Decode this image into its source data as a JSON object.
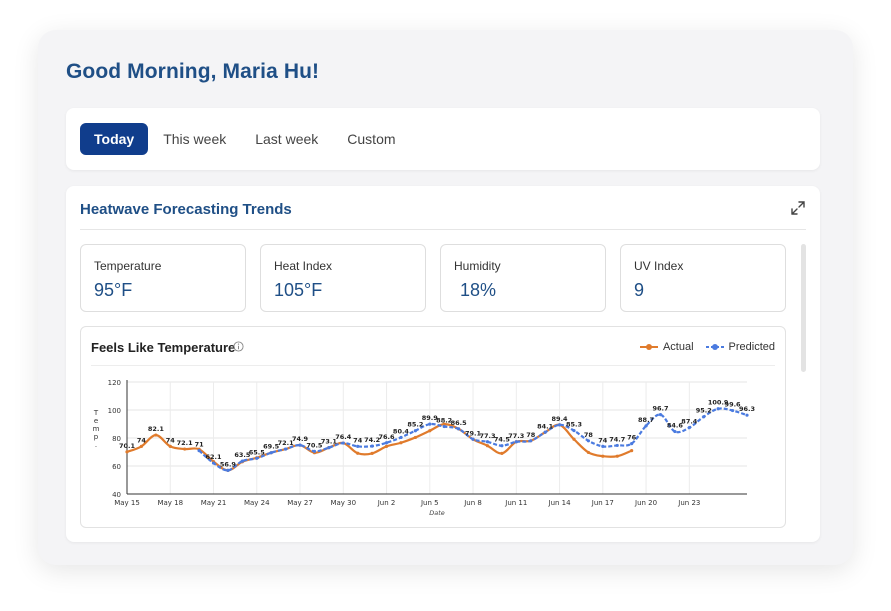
{
  "greeting": "Good Morning, Maria Hu!",
  "tabs": [
    {
      "label": "Today",
      "active": true
    },
    {
      "label": "This week",
      "active": false
    },
    {
      "label": "Last week",
      "active": false
    },
    {
      "label": "Custom",
      "active": false
    }
  ],
  "panel": {
    "title": "Heatwave Forecasting Trends",
    "expand_icon": "expand-icon"
  },
  "kpis": [
    {
      "label": "Temperature",
      "value": "95°F"
    },
    {
      "label": "Heat Index",
      "value": "105°F"
    },
    {
      "label": "Humidity",
      "value": "18%"
    },
    {
      "label": "UV Index",
      "value": "9"
    }
  ],
  "colors": {
    "accent": "#103d8c",
    "title": "#1f4f86",
    "actual": "#e07b2c",
    "predicted": "#4b7be0"
  },
  "chart_data": {
    "type": "line",
    "title": "Feels Like Temperature",
    "xlabel": "Date",
    "ylabel": "Temp.",
    "ylim": [
      40,
      120
    ],
    "yticks": [
      40,
      60,
      80,
      100,
      120
    ],
    "grid": true,
    "legend": "top-right",
    "x_tick_labels": [
      "May 15",
      "May 18",
      "May 21",
      "May 24",
      "May 27",
      "May 30",
      "Jun 2",
      "Jun 5",
      "Jun 8",
      "Jun 11",
      "Jun 14",
      "Jun 17",
      "Jun 20",
      "Jun 23"
    ],
    "series": [
      {
        "name": "Actual",
        "values": [
          70.1,
          74,
          82.1,
          74,
          72.1,
          72,
          63.1,
          56.9,
          63,
          65.9,
          69.5,
          72.1,
          74.9,
          69.5,
          73.1,
          76.4,
          69.1,
          69.0,
          74,
          76.6,
          80.4,
          85.2,
          89.9,
          86.5,
          79.1,
          74.5,
          69,
          77.3,
          78,
          84.1,
          89.4,
          79.1,
          69.7,
          67,
          67,
          71,
          null,
          null,
          null,
          null,
          null,
          null,
          null,
          null
        ]
      },
      {
        "name": "Predicted",
        "values": [
          null,
          null,
          null,
          null,
          null,
          71,
          62.1,
          56.9,
          63.5,
          65.5,
          69.5,
          72.1,
          74.9,
          70.5,
          73.1,
          76.4,
          74,
          74.2,
          76.6,
          80.4,
          85.2,
          89.9,
          88.2,
          86.5,
          79.1,
          77.3,
          74.5,
          77.3,
          78,
          84.1,
          89.4,
          85.3,
          78,
          74,
          74.7,
          76,
          88.7,
          96.7,
          84.6,
          87.4,
          95.2,
          100.9,
          99.6,
          96.3
        ]
      }
    ]
  }
}
